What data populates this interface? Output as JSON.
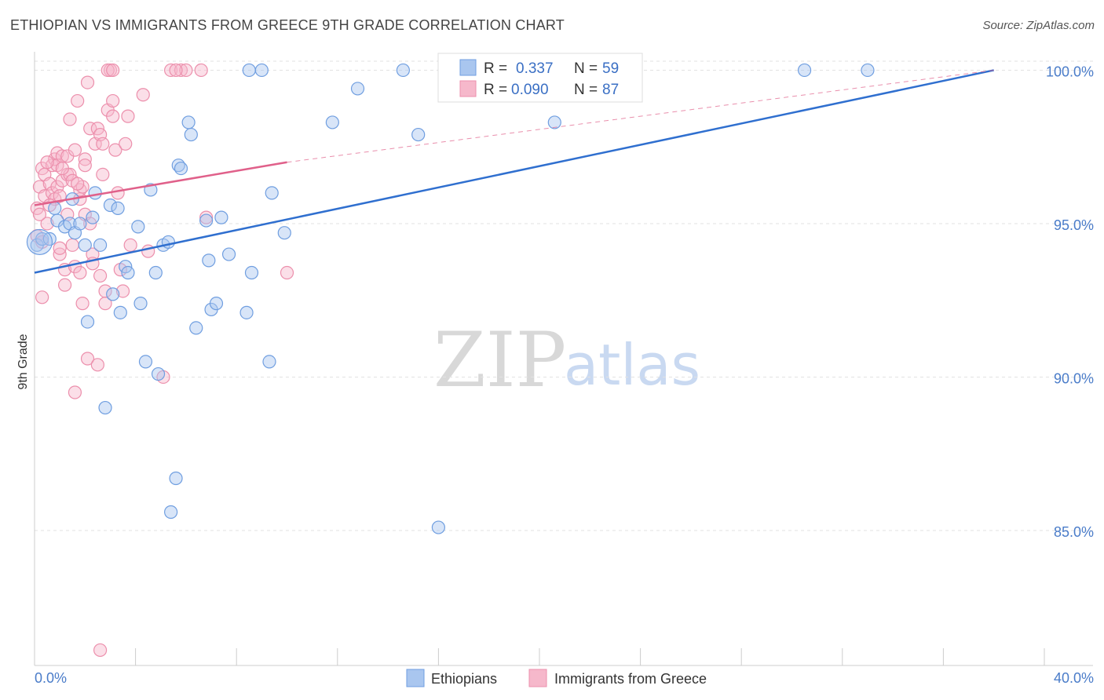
{
  "header": {
    "title": "ETHIOPIAN VS IMMIGRANTS FROM GREECE 9TH GRADE CORRELATION CHART",
    "source": "Source: ZipAtlas.com"
  },
  "watermark": {
    "zip": "ZIP",
    "atlas": "atlas"
  },
  "legend_stats": [
    {
      "r_label": "R =",
      "r_value": "0.337",
      "n_label": "N =",
      "n_value": "59"
    },
    {
      "r_label": "R =",
      "r_value": "0.090",
      "n_label": "N =",
      "n_value": "87"
    }
  ],
  "chart_data": {
    "type": "scatter",
    "title": "ETHIOPIAN VS IMMIGRANTS FROM GREECE 9TH GRADE CORRELATION CHART",
    "xlabel": "",
    "ylabel": "9th Grade",
    "xlim": [
      0,
      40
    ],
    "ylim": [
      80.6,
      100.6
    ],
    "x_tick_labels": [
      "0.0%",
      "40.0%"
    ],
    "y_ticks": [
      85,
      90,
      95,
      100
    ],
    "y_tick_labels": [
      "85.0%",
      "90.0%",
      "95.0%",
      "100.0%"
    ],
    "grid": true,
    "colors": {
      "ethiopians_fill": "#a9c6ef",
      "ethiopians_stroke": "#6f9ee0",
      "ethiopians_line": "#2f6fcf",
      "greece_fill": "#f6b8cb",
      "greece_stroke": "#ec8fac",
      "greece_line": "#e0608a"
    },
    "series": [
      {
        "name": "Ethiopians",
        "r": 0.337,
        "n": 59,
        "trend": {
          "x": [
            0,
            38
          ],
          "y": [
            93.4,
            100.0
          ]
        },
        "points": [
          [
            0.1,
            94.3
          ],
          [
            0.3,
            94.5
          ],
          [
            0.6,
            94.5
          ],
          [
            0.8,
            95.5
          ],
          [
            0.9,
            95.1
          ],
          [
            1.2,
            94.9
          ],
          [
            1.4,
            95.0
          ],
          [
            1.5,
            95.8
          ],
          [
            1.6,
            94.7
          ],
          [
            1.8,
            95.0
          ],
          [
            2.0,
            94.3
          ],
          [
            2.1,
            91.8
          ],
          [
            2.3,
            95.2
          ],
          [
            2.4,
            96.0
          ],
          [
            2.6,
            94.3
          ],
          [
            2.8,
            89.0
          ],
          [
            3.0,
            95.6
          ],
          [
            3.1,
            92.7
          ],
          [
            3.3,
            95.5
          ],
          [
            3.4,
            92.1
          ],
          [
            3.6,
            93.6
          ],
          [
            3.7,
            93.4
          ],
          [
            4.1,
            94.9
          ],
          [
            4.2,
            92.4
          ],
          [
            4.4,
            90.5
          ],
          [
            4.6,
            96.1
          ],
          [
            4.8,
            93.4
          ],
          [
            4.9,
            90.1
          ],
          [
            5.1,
            94.3
          ],
          [
            5.3,
            94.4
          ],
          [
            5.4,
            85.6
          ],
          [
            5.6,
            86.7
          ],
          [
            5.7,
            96.9
          ],
          [
            5.8,
            96.8
          ],
          [
            6.1,
            98.3
          ],
          [
            6.2,
            97.9
          ],
          [
            6.4,
            91.6
          ],
          [
            6.8,
            95.1
          ],
          [
            6.9,
            93.8
          ],
          [
            7.0,
            92.2
          ],
          [
            7.2,
            92.4
          ],
          [
            7.4,
            95.2
          ],
          [
            7.7,
            94.0
          ],
          [
            8.4,
            92.1
          ],
          [
            8.5,
            100.0
          ],
          [
            8.6,
            93.4
          ],
          [
            9.0,
            100.0
          ],
          [
            9.3,
            90.5
          ],
          [
            9.4,
            96.0
          ],
          [
            9.9,
            94.7
          ],
          [
            11.8,
            98.3
          ],
          [
            12.8,
            99.4
          ],
          [
            14.6,
            100.0
          ],
          [
            15.2,
            97.9
          ],
          [
            16.0,
            85.1
          ],
          [
            20.6,
            98.3
          ],
          [
            30.5,
            100.0
          ],
          [
            33.0,
            100.0
          ],
          [
            0.2,
            94.4
          ]
        ]
      },
      {
        "name": "Immigrants from Greece",
        "r": 0.09,
        "n": 87,
        "trend": {
          "x": [
            0,
            10
          ],
          "y": [
            95.6,
            97.0
          ]
        },
        "trend_extension": {
          "x": [
            10,
            38
          ],
          "y": [
            97.0,
            100.0
          ]
        },
        "points": [
          [
            0.1,
            94.6
          ],
          [
            0.1,
            95.5
          ],
          [
            0.2,
            96.2
          ],
          [
            0.3,
            96.8
          ],
          [
            0.3,
            94.4
          ],
          [
            0.3,
            92.6
          ],
          [
            0.4,
            95.9
          ],
          [
            0.4,
            96.6
          ],
          [
            0.5,
            95.0
          ],
          [
            0.6,
            96.3
          ],
          [
            0.7,
            96.9
          ],
          [
            0.7,
            96.0
          ],
          [
            0.8,
            97.1
          ],
          [
            0.8,
            95.8
          ],
          [
            0.9,
            96.2
          ],
          [
            0.9,
            96.9
          ],
          [
            0.9,
            97.3
          ],
          [
            1.0,
            95.9
          ],
          [
            1.0,
            94.0
          ],
          [
            1.1,
            97.2
          ],
          [
            1.1,
            96.4
          ],
          [
            1.2,
            93.5
          ],
          [
            1.2,
            93.0
          ],
          [
            1.3,
            97.2
          ],
          [
            1.3,
            96.6
          ],
          [
            1.4,
            98.4
          ],
          [
            1.4,
            96.6
          ],
          [
            1.5,
            94.3
          ],
          [
            1.5,
            96.4
          ],
          [
            1.6,
            97.4
          ],
          [
            1.6,
            93.6
          ],
          [
            1.6,
            89.5
          ],
          [
            1.7,
            99.0
          ],
          [
            1.8,
            95.8
          ],
          [
            1.8,
            96.1
          ],
          [
            1.8,
            93.4
          ],
          [
            1.9,
            92.4
          ],
          [
            1.9,
            96.2
          ],
          [
            2.0,
            97.1
          ],
          [
            2.0,
            96.9
          ],
          [
            2.0,
            95.3
          ],
          [
            2.1,
            90.6
          ],
          [
            2.1,
            99.6
          ],
          [
            2.2,
            98.1
          ],
          [
            2.3,
            94.0
          ],
          [
            2.3,
            93.7
          ],
          [
            2.4,
            97.6
          ],
          [
            2.5,
            90.4
          ],
          [
            2.5,
            98.1
          ],
          [
            2.6,
            97.9
          ],
          [
            2.7,
            97.6
          ],
          [
            2.7,
            96.6
          ],
          [
            2.8,
            92.8
          ],
          [
            2.8,
            92.4
          ],
          [
            2.9,
            98.7
          ],
          [
            3.0,
            100.0
          ],
          [
            3.1,
            98.5
          ],
          [
            3.1,
            99.0
          ],
          [
            3.2,
            97.4
          ],
          [
            3.4,
            93.5
          ],
          [
            3.5,
            92.8
          ],
          [
            3.6,
            97.6
          ],
          [
            3.7,
            98.5
          ],
          [
            3.8,
            94.3
          ],
          [
            4.3,
            99.2
          ],
          [
            4.5,
            94.1
          ],
          [
            5.1,
            90.0
          ],
          [
            5.4,
            100.0
          ],
          [
            5.8,
            100.0
          ],
          [
            6.0,
            100.0
          ],
          [
            6.6,
            100.0
          ],
          [
            6.8,
            95.2
          ],
          [
            10.0,
            93.4
          ],
          [
            2.6,
            81.1
          ],
          [
            2.9,
            100.0
          ],
          [
            3.1,
            100.0
          ],
          [
            5.6,
            100.0
          ],
          [
            0.2,
            95.3
          ],
          [
            0.6,
            95.6
          ],
          [
            1.0,
            94.2
          ],
          [
            1.3,
            95.3
          ],
          [
            1.7,
            96.3
          ],
          [
            2.2,
            95.0
          ],
          [
            2.6,
            93.3
          ],
          [
            3.3,
            96.0
          ],
          [
            0.5,
            97.0
          ],
          [
            1.1,
            96.8
          ]
        ]
      }
    ]
  },
  "bottom_legend": [
    {
      "label": "Ethiopians"
    },
    {
      "label": "Immigrants from Greece"
    }
  ]
}
